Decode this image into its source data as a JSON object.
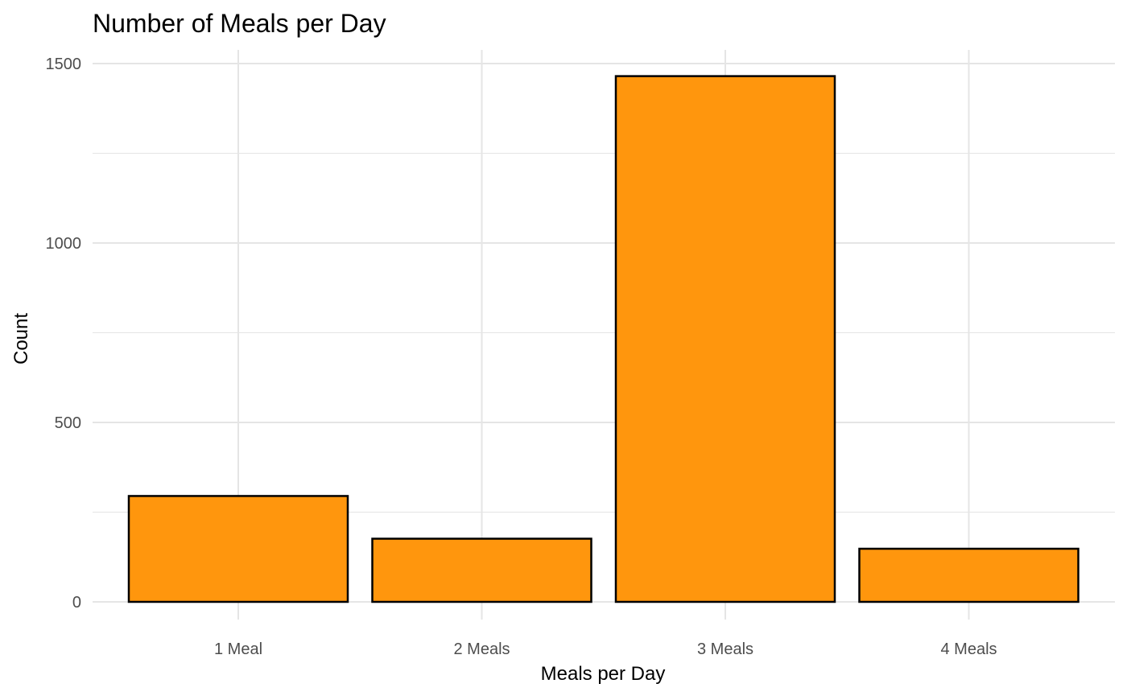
{
  "chart_data": {
    "type": "bar",
    "title": "Number of Meals per Day",
    "xlabel": "Meals per Day",
    "ylabel": "Count",
    "categories": [
      "1 Meal",
      "2 Meals",
      "3 Meals",
      "4 Meals"
    ],
    "values": [
      295,
      176,
      1465,
      148
    ],
    "ylim": [
      0,
      1500
    ],
    "yticks": [
      0,
      500,
      1000,
      1500
    ],
    "grid": true,
    "bar_color": "#FF960D",
    "bar_border_color": "#000000",
    "grid_color": "#E5E5E5"
  }
}
